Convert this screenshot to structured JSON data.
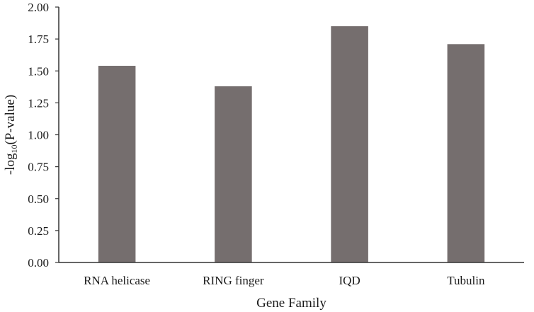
{
  "chart_data": {
    "type": "bar",
    "title": "",
    "xlabel": "Gene Family",
    "ylabel_main": "-log",
    "ylabel_sub": "10",
    "ylabel_rest": "(P-value)",
    "categories": [
      "RNA helicase",
      "RING finger",
      "IQD",
      "Tubulin"
    ],
    "values": [
      1.54,
      1.38,
      1.85,
      1.71
    ],
    "ylim": [
      0,
      2
    ],
    "yticks": [
      "0.00",
      "0.25",
      "0.50",
      "0.75",
      "1.00",
      "1.25",
      "1.50",
      "1.75",
      "2.00"
    ],
    "grid": false,
    "legend": "none",
    "bar_color": "#756e6e",
    "axis_color": "#333333"
  }
}
